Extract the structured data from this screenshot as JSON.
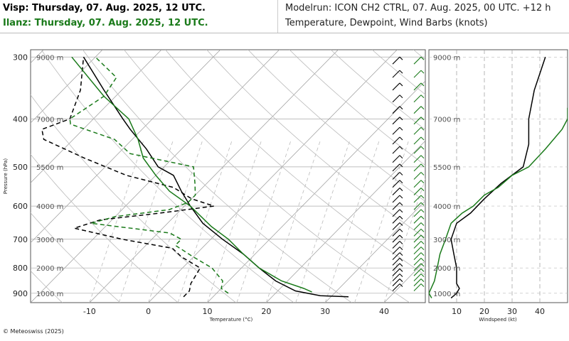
{
  "header": {
    "line1_left": "Visp: Thursday, 07. Aug. 2025, 12 UTC.",
    "line2_left": "Ilanz: Thursday, 07. Aug. 2025, 12 UTC.",
    "line1_right": "Modelrun: ICON CH2 CTRL, 07. Aug. 2025, 00 UTC. +12 h",
    "line2_right": "Temperature, Dewpoint, Wind Barbs (knots)"
  },
  "footer": {
    "copyright": "© Meteoswiss (2025)"
  },
  "colors": {
    "visp": "#000000",
    "ilanz": "#1a7a1a",
    "grid": "#999999",
    "dry_adiabat": "#bbbbbb"
  },
  "chart_data": [
    {
      "type": "line",
      "subtype": "skew-t",
      "xlabel": "Temperature (°C)",
      "ylabel": "Pressure (hPa)",
      "xlim": [
        -20,
        47
      ],
      "ylim": [
        940,
        290
      ],
      "yscale": "log",
      "x_ticks": [
        "-10",
        "0",
        "10",
        "20",
        "30",
        "40"
      ],
      "y_ticks": [
        "300",
        "400",
        "500",
        "600",
        "700",
        "800",
        "900"
      ],
      "height_labels": [
        {
          "p": 300,
          "label": "9000 m"
        },
        {
          "p": 400,
          "label": "7000 m"
        },
        {
          "p": 500,
          "label": "5500 m"
        },
        {
          "p": 600,
          "label": "4000 m"
        },
        {
          "p": 700,
          "label": "3000 m"
        },
        {
          "p": 800,
          "label": "2000 m"
        },
        {
          "p": 900,
          "label": "1000 m"
        }
      ],
      "series": [
        {
          "station": "Visp",
          "variable": "temperature",
          "color": "#000000",
          "points": [
            [
              915,
              33
            ],
            [
              910,
              28
            ],
            [
              890,
              23
            ],
            [
              850,
              18
            ],
            [
              800,
              13
            ],
            [
              750,
              8
            ],
            [
              700,
              2
            ],
            [
              650,
              -4
            ],
            [
              600,
              -9
            ],
            [
              560,
              -13
            ],
            [
              520,
              -17
            ],
            [
              500,
              -21
            ],
            [
              460,
              -26
            ],
            [
              420,
              -32
            ],
            [
              400,
              -35
            ],
            [
              350,
              -43
            ],
            [
              300,
              -52
            ]
          ]
        },
        {
          "station": "Visp",
          "variable": "dewpoint",
          "color": "#000000",
          "points": [
            [
              915,
              5
            ],
            [
              890,
              5
            ],
            [
              860,
              4
            ],
            [
              800,
              3
            ],
            [
              760,
              -2
            ],
            [
              730,
              -5
            ],
            [
              700,
              -15
            ],
            [
              665,
              -25
            ],
            [
              640,
              -22
            ],
            [
              620,
              -13
            ],
            [
              600,
              -5
            ],
            [
              580,
              -10
            ],
            [
              550,
              -15
            ],
            [
              520,
              -25
            ],
            [
              480,
              -35
            ],
            [
              440,
              -45
            ],
            [
              420,
              -47
            ],
            [
              400,
              -44
            ],
            [
              350,
              -47
            ],
            [
              300,
              -52
            ]
          ]
        },
        {
          "station": "Ilanz",
          "variable": "temperature",
          "color": "#1a7a1a",
          "points": [
            [
              895,
              26
            ],
            [
              880,
              24
            ],
            [
              850,
              19
            ],
            [
              800,
              13
            ],
            [
              750,
              8
            ],
            [
              700,
              3
            ],
            [
              660,
              -2
            ],
            [
              600,
              -9
            ],
            [
              560,
              -15
            ],
            [
              520,
              -20
            ],
            [
              480,
              -25
            ],
            [
              440,
              -29
            ],
            [
              400,
              -34
            ],
            [
              360,
              -42
            ],
            [
              300,
              -54
            ]
          ]
        },
        {
          "station": "Ilanz",
          "variable": "dewpoint",
          "color": "#1a7a1a",
          "points": [
            [
              900,
              12
            ],
            [
              880,
              10
            ],
            [
              850,
              9
            ],
            [
              800,
              5
            ],
            [
              760,
              0
            ],
            [
              720,
              -5
            ],
            [
              700,
              -5
            ],
            [
              680,
              -8
            ],
            [
              650,
              -23
            ],
            [
              630,
              -20
            ],
            [
              610,
              -12
            ],
            [
              590,
              -10
            ],
            [
              570,
              -10
            ],
            [
              540,
              -12
            ],
            [
              500,
              -15
            ],
            [
              470,
              -28
            ],
            [
              440,
              -33
            ],
            [
              410,
              -43
            ],
            [
              400,
              -44
            ],
            [
              360,
              -42
            ],
            [
              330,
              -43
            ],
            [
              300,
              -50
            ]
          ]
        }
      ]
    },
    {
      "type": "line",
      "xlabel": "Windspeed (kt)",
      "ylabel": "",
      "xlim": [
        0,
        50
      ],
      "x_ticks": [
        "10",
        "20",
        "30",
        "40"
      ],
      "y_ticks": [
        "9000 m",
        "7000 m",
        "5500 m",
        "4000 m",
        "3000 m",
        "2000 m",
        "1000 m"
      ],
      "series": [
        {
          "station": "Visp",
          "color": "#000000",
          "points": [
            [
              920,
              8
            ],
            [
              910,
              9
            ],
            [
              900,
              10
            ],
            [
              880,
              11
            ],
            [
              860,
              10
            ],
            [
              800,
              10
            ],
            [
              750,
              9
            ],
            [
              700,
              8
            ],
            [
              650,
              10
            ],
            [
              620,
              15
            ],
            [
              580,
              20
            ],
            [
              540,
              26
            ],
            [
              500,
              34
            ],
            [
              450,
              36
            ],
            [
              400,
              36
            ],
            [
              350,
              38
            ],
            [
              300,
              42
            ]
          ]
        },
        {
          "station": "Ilanz",
          "color": "#1a7a1a",
          "points": [
            [
              920,
              1
            ],
            [
              900,
              0
            ],
            [
              850,
              2
            ],
            [
              800,
              3
            ],
            [
              750,
              4
            ],
            [
              700,
              6
            ],
            [
              650,
              8
            ],
            [
              620,
              12
            ],
            [
              600,
              16
            ],
            [
              570,
              20
            ],
            [
              550,
              25
            ],
            [
              520,
              30
            ],
            [
              500,
              36
            ],
            [
              460,
              42
            ],
            [
              420,
              48
            ],
            [
              400,
              50
            ],
            [
              380,
              50
            ]
          ]
        }
      ]
    }
  ]
}
